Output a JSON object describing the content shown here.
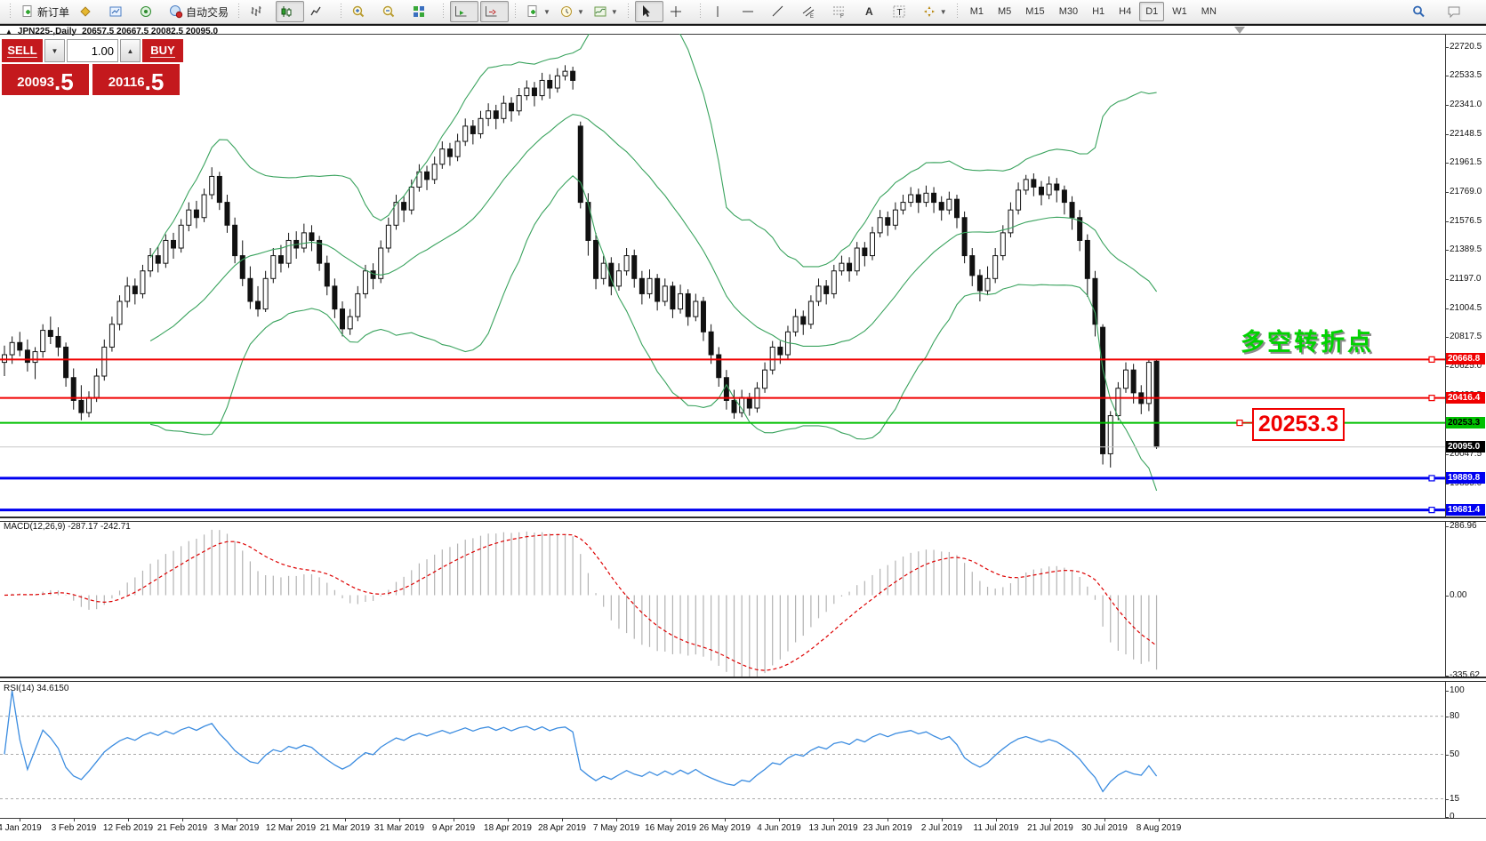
{
  "toolbar": {
    "items": [
      {
        "name": "new-order",
        "icon": "doc-plus",
        "label": "新订单"
      },
      {
        "name": "chart-profiles",
        "icon": "gold-diamond"
      },
      {
        "name": "market-watch",
        "icon": "window-chart"
      },
      {
        "name": "data-window",
        "icon": "radar"
      },
      {
        "name": "auto-trading",
        "icon": "autotrade",
        "label": "自动交易"
      },
      {
        "sep": true
      },
      {
        "name": "bar-chart",
        "icon": "bars"
      },
      {
        "name": "candlestick-chart",
        "icon": "candles",
        "active": true
      },
      {
        "name": "line-chart",
        "icon": "linechart"
      },
      {
        "sep": true
      },
      {
        "name": "zoom-in",
        "icon": "zoom-in"
      },
      {
        "name": "zoom-out",
        "icon": "zoom-out"
      },
      {
        "name": "tile-windows",
        "icon": "tile"
      },
      {
        "sep": true
      },
      {
        "name": "auto-scroll",
        "icon": "autoscroll",
        "active": true
      },
      {
        "name": "chart-shift",
        "icon": "chartshift",
        "active": true
      },
      {
        "sep": true
      },
      {
        "name": "indicators",
        "icon": "doc-plus",
        "dropdown": true
      },
      {
        "name": "periods",
        "icon": "clock",
        "dropdown": true
      },
      {
        "name": "templates",
        "icon": "template",
        "dropdown": true
      },
      {
        "sep": true
      },
      {
        "name": "cursor",
        "icon": "cursor",
        "active": true
      },
      {
        "name": "crosshair",
        "icon": "crosshair"
      },
      {
        "sep": true
      },
      {
        "name": "vertical-line",
        "icon": "vline"
      },
      {
        "name": "horizontal-line",
        "icon": "hline"
      },
      {
        "name": "trendline",
        "icon": "trend"
      },
      {
        "name": "equidistant-channel",
        "icon": "channel"
      },
      {
        "name": "fibonacci-retracement",
        "icon": "fibo"
      },
      {
        "name": "text",
        "icon": "text-a"
      },
      {
        "name": "text-label",
        "icon": "text-t"
      },
      {
        "name": "arrows",
        "icon": "arrows",
        "dropdown": true
      }
    ],
    "timeframes": [
      "M1",
      "M5",
      "M15",
      "M30",
      "H1",
      "H4",
      "D1",
      "W1",
      "MN"
    ],
    "active_timeframe": "D1",
    "right_items": [
      {
        "name": "search",
        "icon": "search"
      },
      {
        "name": "community-chat",
        "icon": "chat"
      }
    ]
  },
  "chart_header": {
    "collapse_arrow": "▲",
    "symbol_period": "JPN225-,Daily",
    "ohlc_text": "20657.5 20667.5 20082.5 20095.0"
  },
  "trade_panel": {
    "sell_label": "SELL",
    "buy_label": "BUY",
    "volume": "1.00",
    "spin_down": "▼",
    "spin_up": "▲",
    "sell_price": "20093",
    "sell_fraction": ".5",
    "buy_price": "20116",
    "buy_fraction": ".5",
    "panel_color": "#c4191d"
  },
  "annotations": {
    "turning_point_text": "多空转折点",
    "turning_point_color": "#00d300",
    "callout_text": "20253.3",
    "callout_color": "#f00000"
  },
  "chart_data": {
    "type": "candlestick",
    "symbol": "JPN225-",
    "timeframe": "Daily",
    "ohlc_display": "20657.5 20667.5 20082.5 20095.0",
    "price_axis": {
      "range_min": 19638.4,
      "range_max": 22806.0,
      "ticks": [
        22720.5,
        22533.5,
        22341.0,
        22148.5,
        21961.5,
        21769.0,
        21576.5,
        21389.5,
        21197.0,
        21004.5,
        20817.5,
        20625.0,
        20432.5,
        20240.0,
        20047.5,
        19855.0,
        19662.5
      ]
    },
    "x_axis_dates": [
      "4 Jan 2019",
      "3 Feb 2019",
      "12 Feb 2019",
      "21 Feb 2019",
      "3 Mar 2019",
      "12 Mar 2019",
      "21 Mar 2019",
      "31 Mar 2019",
      "9 Apr 2019",
      "18 Apr 2019",
      "28 Apr 2019",
      "7 May 2019",
      "16 May 2019",
      "26 May 2019",
      "4 Jun 2019",
      "13 Jun 2019",
      "23 Jun 2019",
      "2 Jul 2019",
      "11 Jul 2019",
      "21 Jul 2019",
      "30 Jul 2019",
      "8 Aug 2019"
    ],
    "candles": [
      [
        20650,
        20760,
        20560,
        20700
      ],
      [
        20700,
        20820,
        20640,
        20780
      ],
      [
        20780,
        20850,
        20690,
        20730
      ],
      [
        20730,
        20800,
        20590,
        20650
      ],
      [
        20650,
        20750,
        20540,
        20720
      ],
      [
        20720,
        20900,
        20680,
        20860
      ],
      [
        20860,
        20950,
        20770,
        20820
      ],
      [
        20820,
        20880,
        20690,
        20750
      ],
      [
        20750,
        20780,
        20490,
        20550
      ],
      [
        20550,
        20610,
        20340,
        20400
      ],
      [
        20400,
        20500,
        20270,
        20320
      ],
      [
        20320,
        20460,
        20290,
        20420
      ],
      [
        20420,
        20610,
        20390,
        20560
      ],
      [
        20560,
        20800,
        20530,
        20750
      ],
      [
        20750,
        20950,
        20720,
        20900
      ],
      [
        20900,
        21090,
        20860,
        21050
      ],
      [
        21050,
        21210,
        21010,
        21150
      ],
      [
        21150,
        21200,
        21030,
        21100
      ],
      [
        21100,
        21290,
        21070,
        21250
      ],
      [
        21250,
        21400,
        21210,
        21350
      ],
      [
        21350,
        21410,
        21240,
        21300
      ],
      [
        21300,
        21490,
        21270,
        21450
      ],
      [
        21450,
        21500,
        21330,
        21400
      ],
      [
        21400,
        21590,
        21370,
        21550
      ],
      [
        21550,
        21700,
        21510,
        21650
      ],
      [
        21650,
        21710,
        21530,
        21600
      ],
      [
        21600,
        21790,
        21570,
        21750
      ],
      [
        21750,
        21930,
        21720,
        21870
      ],
      [
        21870,
        21900,
        21650,
        21700
      ],
      [
        21700,
        21750,
        21500,
        21550
      ],
      [
        21550,
        21600,
        21300,
        21350
      ],
      [
        21350,
        21450,
        21150,
        21200
      ],
      [
        21200,
        21280,
        21000,
        21050
      ],
      [
        21050,
        21150,
        20950,
        21000
      ],
      [
        21000,
        21250,
        20980,
        21200
      ],
      [
        21200,
        21400,
        21170,
        21350
      ],
      [
        21350,
        21420,
        21240,
        21300
      ],
      [
        21300,
        21500,
        21270,
        21450
      ],
      [
        21450,
        21510,
        21330,
        21400
      ],
      [
        21400,
        21560,
        21370,
        21500
      ],
      [
        21500,
        21550,
        21380,
        21450
      ],
      [
        21450,
        21480,
        21250,
        21300
      ],
      [
        21300,
        21350,
        21090,
        21150
      ],
      [
        21150,
        21200,
        20940,
        21000
      ],
      [
        21000,
        21050,
        20820,
        20870
      ],
      [
        20870,
        21000,
        20830,
        20950
      ],
      [
        20950,
        21150,
        20920,
        21100
      ],
      [
        21100,
        21290,
        21070,
        21250
      ],
      [
        21250,
        21300,
        21130,
        21200
      ],
      [
        21200,
        21450,
        21170,
        21400
      ],
      [
        21400,
        21600,
        21370,
        21550
      ],
      [
        21550,
        21750,
        21520,
        21700
      ],
      [
        21700,
        21740,
        21570,
        21650
      ],
      [
        21650,
        21850,
        21620,
        21800
      ],
      [
        21800,
        21950,
        21770,
        21900
      ],
      [
        21900,
        21940,
        21780,
        21850
      ],
      [
        21850,
        22000,
        21820,
        21950
      ],
      [
        21950,
        22100,
        21920,
        22050
      ],
      [
        22050,
        22090,
        21940,
        22000
      ],
      [
        22000,
        22150,
        21970,
        22100
      ],
      [
        22100,
        22250,
        22070,
        22200
      ],
      [
        22200,
        22240,
        22080,
        22150
      ],
      [
        22150,
        22300,
        22120,
        22250
      ],
      [
        22250,
        22350,
        22200,
        22300
      ],
      [
        22300,
        22340,
        22180,
        22250
      ],
      [
        22250,
        22400,
        22220,
        22350
      ],
      [
        22350,
        22390,
        22230,
        22300
      ],
      [
        22300,
        22450,
        22270,
        22400
      ],
      [
        22400,
        22500,
        22370,
        22450
      ],
      [
        22450,
        22490,
        22330,
        22400
      ],
      [
        22400,
        22550,
        22370,
        22500
      ],
      [
        22500,
        22540,
        22380,
        22450
      ],
      [
        22450,
        22580,
        22420,
        22530
      ],
      [
        22530,
        22600,
        22500,
        22560
      ],
      [
        22560,
        22590,
        22440,
        22500
      ],
      [
        22200,
        22230,
        21660,
        21700
      ],
      [
        21700,
        21760,
        21350,
        21450
      ],
      [
        21450,
        21500,
        21130,
        21200
      ],
      [
        21200,
        21350,
        21160,
        21300
      ],
      [
        21300,
        21340,
        21090,
        21150
      ],
      [
        21150,
        21300,
        21120,
        21250
      ],
      [
        21250,
        21400,
        21220,
        21350
      ],
      [
        21350,
        21390,
        21140,
        21200
      ],
      [
        21200,
        21250,
        21030,
        21100
      ],
      [
        21100,
        21260,
        21070,
        21200
      ],
      [
        21200,
        21230,
        20990,
        21050
      ],
      [
        21050,
        21200,
        21020,
        21150
      ],
      [
        21150,
        21180,
        20940,
        21000
      ],
      [
        21000,
        21160,
        20970,
        21100
      ],
      [
        21100,
        21130,
        20890,
        20950
      ],
      [
        20950,
        21100,
        20920,
        21050
      ],
      [
        21050,
        21080,
        20790,
        20850
      ],
      [
        20850,
        20900,
        20640,
        20700
      ],
      [
        20700,
        20750,
        20490,
        20550
      ],
      [
        20550,
        20600,
        20340,
        20400
      ],
      [
        20400,
        20470,
        20280,
        20320
      ],
      [
        20320,
        20470,
        20290,
        20420
      ],
      [
        20420,
        20450,
        20300,
        20350
      ],
      [
        20350,
        20520,
        20320,
        20480
      ],
      [
        20480,
        20650,
        20450,
        20600
      ],
      [
        20600,
        20790,
        20570,
        20750
      ],
      [
        20750,
        20790,
        20640,
        20700
      ],
      [
        20700,
        20890,
        20670,
        20850
      ],
      [
        20850,
        21000,
        20820,
        20950
      ],
      [
        20950,
        20990,
        20830,
        20900
      ],
      [
        20900,
        21090,
        20870,
        21050
      ],
      [
        21050,
        21200,
        21020,
        21150
      ],
      [
        21150,
        21190,
        21030,
        21100
      ],
      [
        21100,
        21290,
        21070,
        21250
      ],
      [
        21250,
        21350,
        21220,
        21300
      ],
      [
        21300,
        21340,
        21180,
        21250
      ],
      [
        21250,
        21440,
        21220,
        21400
      ],
      [
        21400,
        21440,
        21280,
        21350
      ],
      [
        21350,
        21540,
        21320,
        21500
      ],
      [
        21500,
        21650,
        21470,
        21600
      ],
      [
        21600,
        21640,
        21480,
        21550
      ],
      [
        21550,
        21700,
        21520,
        21650
      ],
      [
        21650,
        21750,
        21620,
        21700
      ],
      [
        21700,
        21800,
        21670,
        21750
      ],
      [
        21750,
        21790,
        21630,
        21700
      ],
      [
        21700,
        21810,
        21670,
        21760
      ],
      [
        21760,
        21800,
        21630,
        21700
      ],
      [
        21700,
        21740,
        21580,
        21650
      ],
      [
        21650,
        21770,
        21620,
        21720
      ],
      [
        21720,
        21750,
        21530,
        21600
      ],
      [
        21600,
        21640,
        21300,
        21350
      ],
      [
        21350,
        21400,
        21150,
        21220
      ],
      [
        21220,
        21260,
        21050,
        21120
      ],
      [
        21120,
        21280,
        21090,
        21200
      ],
      [
        21200,
        21400,
        21170,
        21350
      ],
      [
        21350,
        21550,
        21320,
        21500
      ],
      [
        21500,
        21700,
        21470,
        21650
      ],
      [
        21650,
        21830,
        21620,
        21780
      ],
      [
        21780,
        21880,
        21750,
        21850
      ],
      [
        21850,
        21890,
        21740,
        21800
      ],
      [
        21800,
        21840,
        21680,
        21750
      ],
      [
        21750,
        21870,
        21720,
        21820
      ],
      [
        21820,
        21860,
        21700,
        21780
      ],
      [
        21780,
        21810,
        21620,
        21700
      ],
      [
        21700,
        21740,
        21520,
        21600
      ],
      [
        21600,
        21650,
        21380,
        21450
      ],
      [
        21450,
        21490,
        21080,
        21200
      ],
      [
        21200,
        21250,
        20820,
        20900
      ],
      [
        20880,
        20900,
        19980,
        20050
      ],
      [
        20050,
        20330,
        19960,
        20300
      ],
      [
        20300,
        20520,
        20270,
        20480
      ],
      [
        20480,
        20650,
        20450,
        20600
      ],
      [
        20600,
        20640,
        20380,
        20450
      ],
      [
        20450,
        20500,
        20310,
        20380
      ],
      [
        20380,
        20670,
        20330,
        20650
      ],
      [
        20657.5,
        20667.5,
        20082.5,
        20095.0
      ]
    ],
    "bollinger": {
      "period": 20,
      "deviation": 2,
      "color": "#3aa35e"
    },
    "hlines": [
      {
        "price": 20668.8,
        "label": "20668.8",
        "color": "#f00000",
        "width": 2,
        "label_bg": "#f00000",
        "label_color": "#ffffff",
        "marker": 1610
      },
      {
        "price": 20416.4,
        "label": "20416.4",
        "color": "#f00000",
        "width": 2,
        "label_bg": "#f00000",
        "label_color": "#ffffff",
        "marker": 1610
      },
      {
        "price": 20253.3,
        "label": "20253.3",
        "color": "#00c000",
        "width": 2,
        "label_bg": "#00c000",
        "label_color": "#000000",
        "marker": 1394,
        "marker_color": "#f00000",
        "connector": true
      },
      {
        "price": 20095.0,
        "label": "20095.0",
        "color": "#c9c9c9",
        "width": 1,
        "label_bg": "#000000",
        "label_color": "#ffffff"
      },
      {
        "price": 19889.8,
        "label": "19889.8",
        "color": "#0000f0",
        "width": 3,
        "label_bg": "#0000f0",
        "label_color": "#ffffff",
        "marker": 1610
      },
      {
        "price": 19681.4,
        "label": "19681.4",
        "color": "#0000f0",
        "width": 3,
        "label_bg": "#0000f0",
        "label_color": "#ffffff",
        "marker": 1610
      }
    ],
    "macd": {
      "label": "MACD(12,26,9) -287.17 -242.71",
      "params": [
        12,
        26,
        9
      ],
      "axis_ticks": [
        {
          "v": 286.96,
          "t": "286.96"
        },
        {
          "v": 0,
          "t": "0.00"
        },
        {
          "v": -335.62,
          "t": "-335.62"
        }
      ],
      "range_min": -338.6,
      "range_max": 312.8,
      "histogram_color": "#b3b3b3",
      "signal_color": "#dd0000"
    },
    "rsi": {
      "label": "RSI(14) 34.6150",
      "period": 14,
      "axis_ticks": [
        {
          "v": 100,
          "t": "100"
        },
        {
          "v": 80,
          "t": "80"
        },
        {
          "v": 50,
          "t": "50"
        },
        {
          "v": 15,
          "t": "15"
        },
        {
          "v": 0,
          "t": "0"
        }
      ],
      "levels": [
        80,
        50,
        15
      ],
      "range_min": 0,
      "range_max": 107.7,
      "color": "#3b8ce0"
    }
  }
}
